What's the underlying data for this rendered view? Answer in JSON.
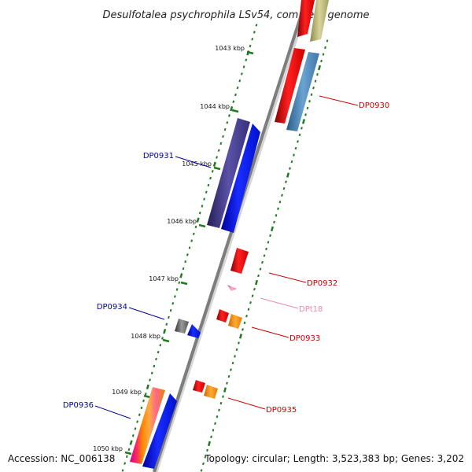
{
  "title": "Desulfotalea psychrophila LSv54, complete genome",
  "footer": {
    "accession": "Accession: NC_006138",
    "topology": "Topology: circular; Length: 3,523,383 bp; Genes: 3,202"
  },
  "colors": {
    "backbone": "#8a8a8a",
    "tick": "#1f7a1f",
    "label_forward": "#cc0000",
    "label_reverse": "#000099",
    "label_rna": "#ee88aa"
  },
  "scale_marks": [
    {
      "label": "1043 kbp",
      "kbp": 1043
    },
    {
      "label": "1044 kbp",
      "kbp": 1044
    },
    {
      "label": "1045 kbp",
      "kbp": 1045
    },
    {
      "label": "1046 kbp",
      "kbp": 1046
    },
    {
      "label": "1047 kbp",
      "kbp": 1047
    },
    {
      "label": "1048 kbp",
      "kbp": 1048
    },
    {
      "label": "1049 kbp",
      "kbp": 1049
    },
    {
      "label": "1050 kbp",
      "kbp": 1050
    }
  ],
  "gene_labels": [
    {
      "name": "DP0930",
      "strand": "forward"
    },
    {
      "name": "DP0931",
      "strand": "reverse"
    },
    {
      "name": "DP0932",
      "strand": "forward"
    },
    {
      "name": "DPt18",
      "strand": "rna"
    },
    {
      "name": "DP0933",
      "strand": "forward"
    },
    {
      "name": "DP0934",
      "strand": "reverse"
    },
    {
      "name": "DP0935",
      "strand": "forward"
    },
    {
      "name": "DP0936",
      "strand": "reverse"
    }
  ]
}
